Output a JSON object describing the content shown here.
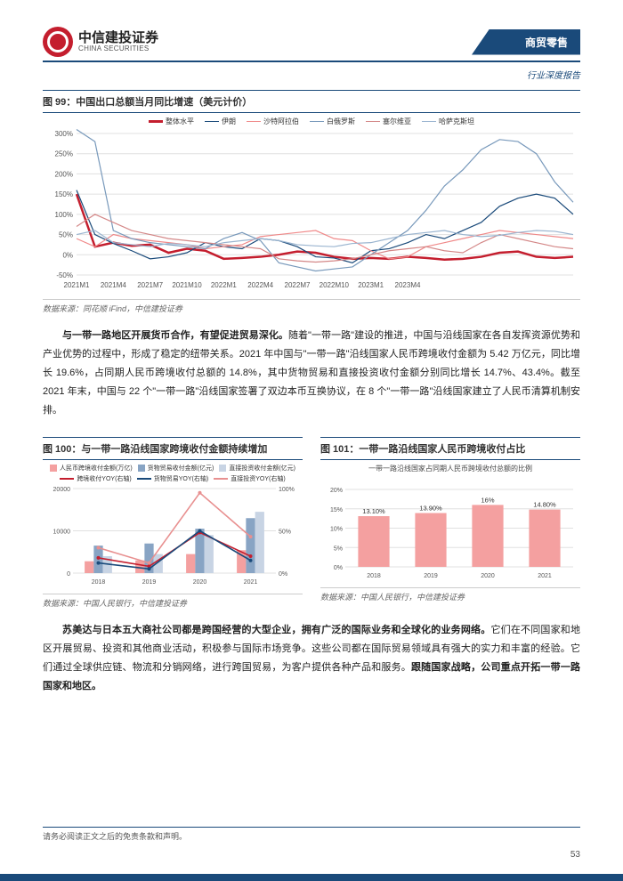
{
  "header": {
    "company_cn": "中信建投证券",
    "company_en": "CHINA SECURITIES",
    "sector": "商贸零售",
    "report_type": "行业深度报告"
  },
  "chart99": {
    "title": "图 99：中国出口总额当月同比增速（美元计价）",
    "source": "数据来源：同花顺 iFind，中信建投证券",
    "type": "line",
    "x_labels": [
      "2021M1",
      "2021M4",
      "2021M7",
      "2021M10",
      "2022M1",
      "2022M4",
      "2022M7",
      "2022M10",
      "2023M1",
      "2023M4"
    ],
    "ylim": [
      -50,
      300
    ],
    "ytick_step": 50,
    "grid_color": "#e0e0e0",
    "background_color": "#ffffff",
    "series": [
      {
        "name": "整体水平",
        "color": "#c41e2e",
        "width": 2.5,
        "data": [
          150,
          20,
          30,
          22,
          25,
          5,
          15,
          10,
          -10,
          -8,
          -5,
          0,
          8,
          5,
          -5,
          -10,
          -8,
          -10,
          -5,
          -8,
          -12,
          -10,
          -5,
          5,
          8,
          -5,
          -8,
          -5
        ]
      },
      {
        "name": "伊朗",
        "color": "#1a4a7a",
        "width": 1.2,
        "data": [
          160,
          50,
          28,
          10,
          -10,
          -5,
          5,
          30,
          20,
          15,
          40,
          35,
          20,
          -5,
          -8,
          -20,
          10,
          15,
          30,
          50,
          40,
          60,
          80,
          120,
          140,
          150,
          140,
          100
        ]
      },
      {
        "name": "沙特阿拉伯",
        "color": "#f08a8a",
        "width": 1.2,
        "data": [
          40,
          20,
          50,
          40,
          35,
          30,
          25,
          15,
          20,
          25,
          45,
          50,
          55,
          60,
          40,
          35,
          10,
          -10,
          -5,
          20,
          30,
          40,
          50,
          60,
          55,
          50,
          45,
          40
        ]
      },
      {
        "name": "白俄罗斯",
        "color": "#7899bb",
        "width": 1.2,
        "data": [
          310,
          280,
          60,
          40,
          30,
          25,
          20,
          15,
          40,
          55,
          35,
          -20,
          -30,
          -40,
          -35,
          -30,
          0,
          30,
          60,
          110,
          170,
          210,
          260,
          285,
          280,
          250,
          180,
          130
        ]
      },
      {
        "name": "塞尔维亚",
        "color": "#d48888",
        "width": 1.2,
        "data": [
          70,
          100,
          80,
          60,
          50,
          40,
          35,
          30,
          25,
          20,
          15,
          -10,
          -15,
          -18,
          -15,
          -10,
          0,
          10,
          15,
          20,
          10,
          5,
          30,
          50,
          40,
          30,
          20,
          15
        ]
      },
      {
        "name": "哈萨克斯坦",
        "color": "#9bb5d0",
        "width": 1.2,
        "data": [
          50,
          60,
          30,
          25,
          20,
          28,
          25,
          20,
          30,
          35,
          40,
          35,
          25,
          22,
          20,
          28,
          30,
          40,
          50,
          55,
          60,
          50,
          45,
          48,
          55,
          60,
          58,
          50
        ]
      }
    ]
  },
  "paragraph1": {
    "lead": "与一带一路地区开展货币合作，有望促进贸易深化。",
    "body": "随着\"一带一路\"建设的推进，中国与沿线国家在各自发挥资源优势和产业优势的过程中，形成了稳定的纽带关系。2021 年中国与\"一带一路\"沿线国家人民币跨境收付金额为 5.42 万亿元，同比增长 19.6%，占同期人民币跨境收付总额的 14.8%，其中货物贸易和直接投资收付金额分别同比增长 14.7%、43.4%。截至 2021 年末，中国与 22 个\"一带一路\"沿线国家签署了双边本币互换协议，在 8 个\"一带一路\"沿线国家建立了人民币清算机制安排。"
  },
  "chart100": {
    "title": "图 100：与一带一路沿线国家跨境收付金额持续增加",
    "source": "数据来源：中国人民银行，中信建投证券",
    "type": "bar+line",
    "categories": [
      "2018",
      "2019",
      "2020",
      "2021"
    ],
    "ylim_left": [
      0,
      20000
    ],
    "ytick_left": [
      0,
      10000,
      20000
    ],
    "ylim_right": [
      0,
      100
    ],
    "ytick_right": [
      "0%",
      "50%",
      "100%"
    ],
    "legend": [
      {
        "name": "人民币跨境收付金额(万亿)",
        "type": "bar",
        "color": "#f4a0a0"
      },
      {
        "name": "货物贸易收付金额(亿元)",
        "type": "bar",
        "color": "#88a4c4"
      },
      {
        "name": "直接投资收付金额(亿元)",
        "type": "bar",
        "color": "#c8d4e4"
      },
      {
        "name": "跨境收付YOY(右轴)",
        "type": "line",
        "color": "#c41e2e"
      },
      {
        "name": "货物贸易YOY(右轴)",
        "type": "line",
        "color": "#1a4a7a"
      },
      {
        "name": "直接投资YOY(右轴)",
        "type": "line",
        "color": "#e89090"
      }
    ],
    "bars": {
      "a": [
        2800,
        3000,
        4500,
        5420
      ],
      "b": [
        6500,
        7000,
        10500,
        13000
      ],
      "c": [
        4000,
        4500,
        9000,
        14500
      ]
    },
    "lines": {
      "a": [
        18,
        8,
        48,
        20
      ],
      "b": [
        12,
        5,
        50,
        15
      ],
      "c": [
        30,
        12,
        95,
        43
      ]
    }
  },
  "chart101": {
    "title": "图 101：一带一路沿线国家人民币跨境收付占比",
    "source": "数据来源：中国人民银行，中信建投证券",
    "type": "bar",
    "subtitle": "一带一路沿线国家占同期人民币跨境收付总额的比例",
    "categories": [
      "2018",
      "2019",
      "2020",
      "2021"
    ],
    "values": [
      13.1,
      13.9,
      16.0,
      14.8
    ],
    "labels": [
      "13.10%",
      "13.90%",
      "16%",
      "14.80%"
    ],
    "bar_color": "#f4a0a0",
    "ylim": [
      0,
      20
    ],
    "ytick_step": 5,
    "grid_color": "#e0e0e0"
  },
  "paragraph2": {
    "lead": "苏美达与日本五大商社公司都是跨国经营的大型企业，拥有广泛的国际业务和全球化的业务网络。",
    "body": "它们在不同国家和地区开展贸易、投资和其他商业活动，积极参与国际市场竞争。这些公司都在国际贸易领域具有强大的实力和丰富的经验。它们通过全球供应链、物流和分销网络，进行跨国贸易，为客户提供各种产品和服务。",
    "tail": "跟随国家战略，公司重点开拓一带一路国家和地区。"
  },
  "footer": {
    "disclaimer": "请务必阅读正文之后的免责条款和声明。",
    "page": "53"
  }
}
